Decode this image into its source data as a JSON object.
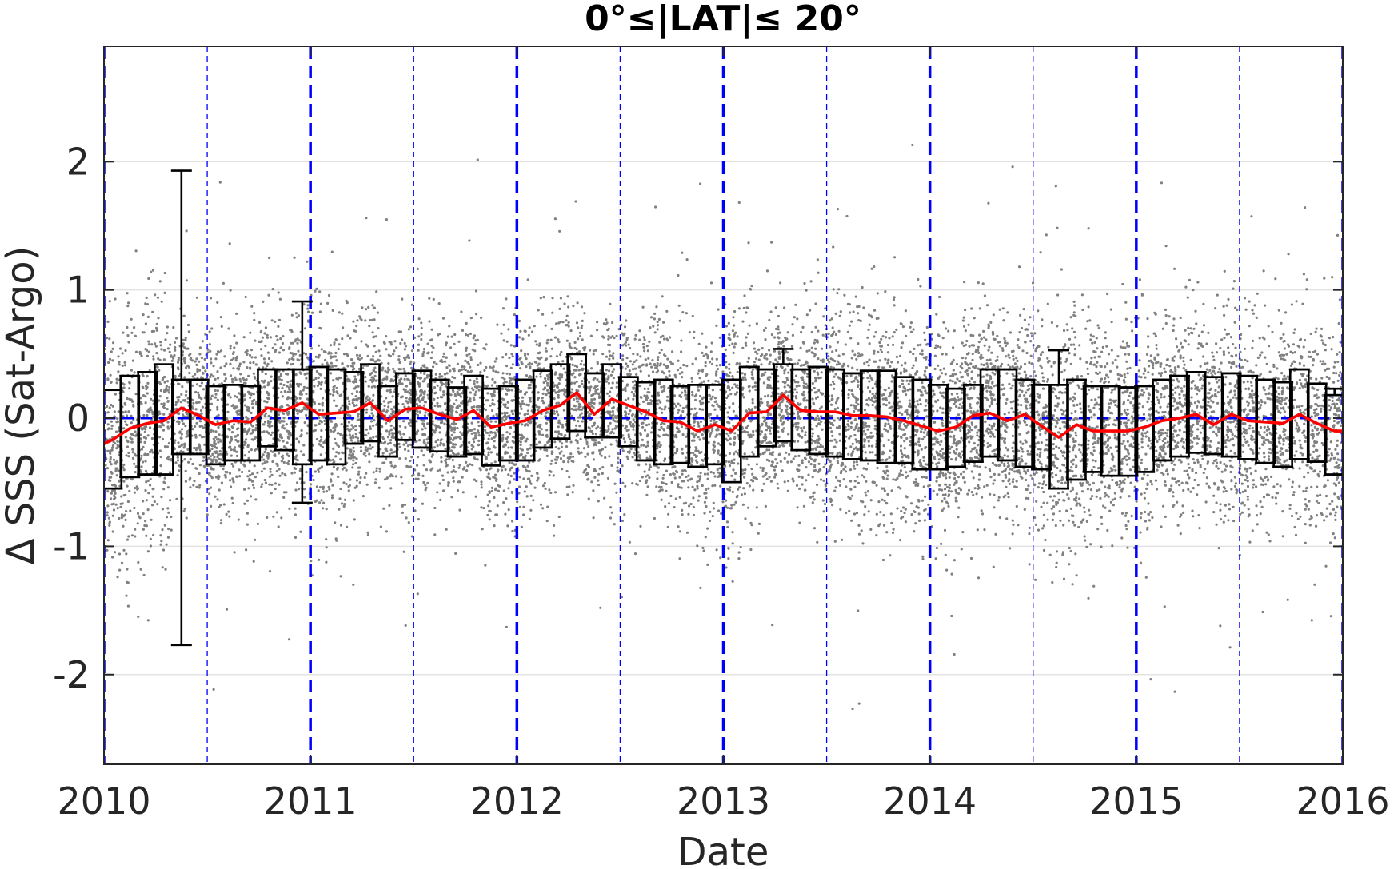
{
  "chart_data": {
    "type": "scatter",
    "title": "0°≤|LAT|≤ 20°",
    "xlabel": "Date",
    "ylabel": "Δ SSS (Sat-Argo)",
    "xlim": [
      2010,
      2016
    ],
    "ylim": [
      -2.7,
      2.9
    ],
    "x_ticks": [
      2010,
      2011,
      2012,
      2013,
      2014,
      2015,
      2016
    ],
    "x_tick_labels": [
      "2010",
      "2011",
      "2012",
      "2013",
      "2014",
      "2015",
      "2016"
    ],
    "y_ticks": [
      -2,
      -1,
      0,
      1,
      2
    ],
    "y_tick_labels": [
      "-2",
      "-1",
      "0",
      "1",
      "2"
    ],
    "grid": "horizontal",
    "legend": "none",
    "colors": {
      "scatter": "#808080",
      "mean_line": "#ff0000",
      "boxes": "#000000",
      "reference_lines": "#0000ff"
    },
    "scatter_points": "dense cloud of individual gray match-up points, mostly within -0.6 to 0.6 with outliers out to about ±2.5",
    "year_lines": [
      2010,
      2011,
      2012,
      2013,
      2014,
      2015,
      2016
    ],
    "half_year_lines": [
      2010.5,
      2011.5,
      2012.5,
      2013.5,
      2014.5,
      2015.5
    ],
    "zero_line": 0,
    "monthly_stats": [
      {
        "x": 2010.04,
        "center": -0.17,
        "q1": -0.55,
        "q3": 0.22,
        "w_low": -0.55,
        "w_high": 0.22
      },
      {
        "x": 2010.125,
        "center": -0.08,
        "q1": -0.46,
        "q3": 0.33,
        "w_low": -0.46,
        "w_high": 0.33
      },
      {
        "x": 2010.21,
        "center": -0.04,
        "q1": -0.44,
        "q3": 0.36,
        "w_low": -0.44,
        "w_high": 0.36
      },
      {
        "x": 2010.29,
        "center": -0.02,
        "q1": -0.44,
        "q3": 0.42,
        "w_low": -0.44,
        "w_high": 0.42
      },
      {
        "x": 2010.375,
        "center": 0.08,
        "q1": -0.28,
        "q3": 0.3,
        "w_low": -1.77,
        "w_high": 1.93
      },
      {
        "x": 2010.46,
        "center": 0.02,
        "q1": -0.28,
        "q3": 0.3,
        "w_low": -0.28,
        "w_high": 0.3
      },
      {
        "x": 2010.54,
        "center": -0.05,
        "q1": -0.36,
        "q3": 0.25,
        "w_low": -0.36,
        "w_high": 0.25
      },
      {
        "x": 2010.625,
        "center": -0.02,
        "q1": -0.33,
        "q3": 0.26,
        "w_low": -0.33,
        "w_high": 0.26
      },
      {
        "x": 2010.71,
        "center": -0.03,
        "q1": -0.33,
        "q3": 0.25,
        "w_low": -0.33,
        "w_high": 0.25
      },
      {
        "x": 2010.79,
        "center": 0.08,
        "q1": -0.22,
        "q3": 0.38,
        "w_low": -0.22,
        "w_high": 0.38
      },
      {
        "x": 2010.875,
        "center": 0.06,
        "q1": -0.25,
        "q3": 0.38,
        "w_low": -0.25,
        "w_high": 0.38
      },
      {
        "x": 2010.96,
        "center": 0.12,
        "q1": -0.36,
        "q3": 0.38,
        "w_low": -0.66,
        "w_high": 0.91
      },
      {
        "x": 2011.04,
        "center": 0.03,
        "q1": -0.33,
        "q3": 0.4,
        "w_low": -0.33,
        "w_high": 0.4
      },
      {
        "x": 2011.125,
        "center": 0.04,
        "q1": -0.36,
        "q3": 0.38,
        "w_low": -0.36,
        "w_high": 0.38
      },
      {
        "x": 2011.21,
        "center": 0.05,
        "q1": -0.2,
        "q3": 0.36,
        "w_low": -0.2,
        "w_high": 0.36
      },
      {
        "x": 2011.29,
        "center": 0.12,
        "q1": -0.18,
        "q3": 0.42,
        "w_low": -0.18,
        "w_high": 0.42
      },
      {
        "x": 2011.375,
        "center": -0.02,
        "q1": -0.3,
        "q3": 0.25,
        "w_low": -0.3,
        "w_high": 0.25
      },
      {
        "x": 2011.46,
        "center": 0.07,
        "q1": -0.17,
        "q3": 0.35,
        "w_low": -0.17,
        "w_high": 0.35
      },
      {
        "x": 2011.54,
        "center": 0.08,
        "q1": -0.23,
        "q3": 0.37,
        "w_low": -0.23,
        "w_high": 0.37
      },
      {
        "x": 2011.625,
        "center": 0.03,
        "q1": -0.26,
        "q3": 0.3,
        "w_low": -0.26,
        "w_high": 0.3
      },
      {
        "x": 2011.71,
        "center": -0.01,
        "q1": -0.3,
        "q3": 0.24,
        "w_low": -0.3,
        "w_high": 0.24
      },
      {
        "x": 2011.79,
        "center": 0.06,
        "q1": -0.28,
        "q3": 0.33,
        "w_low": -0.28,
        "w_high": 0.33
      },
      {
        "x": 2011.875,
        "center": -0.07,
        "q1": -0.37,
        "q3": 0.23,
        "w_low": -0.37,
        "w_high": 0.23
      },
      {
        "x": 2011.96,
        "center": -0.04,
        "q1": -0.33,
        "q3": 0.25,
        "w_low": -0.33,
        "w_high": 0.25
      },
      {
        "x": 2012.04,
        "center": -0.02,
        "q1": -0.33,
        "q3": 0.3,
        "w_low": -0.33,
        "w_high": 0.3
      },
      {
        "x": 2012.125,
        "center": 0.06,
        "q1": -0.23,
        "q3": 0.37,
        "w_low": -0.23,
        "w_high": 0.37
      },
      {
        "x": 2012.21,
        "center": 0.1,
        "q1": -0.16,
        "q3": 0.42,
        "w_low": -0.16,
        "w_high": 0.42
      },
      {
        "x": 2012.29,
        "center": 0.2,
        "q1": -0.1,
        "q3": 0.5,
        "w_low": -0.1,
        "w_high": 0.5
      },
      {
        "x": 2012.375,
        "center": 0.03,
        "q1": -0.15,
        "q3": 0.35,
        "w_low": -0.15,
        "w_high": 0.35
      },
      {
        "x": 2012.46,
        "center": 0.15,
        "q1": -0.15,
        "q3": 0.42,
        "w_low": -0.15,
        "w_high": 0.42
      },
      {
        "x": 2012.54,
        "center": 0.1,
        "q1": -0.22,
        "q3": 0.32,
        "w_low": -0.22,
        "w_high": 0.32
      },
      {
        "x": 2012.625,
        "center": 0.05,
        "q1": -0.33,
        "q3": 0.28,
        "w_low": -0.33,
        "w_high": 0.28
      },
      {
        "x": 2012.71,
        "center": -0.02,
        "q1": -0.36,
        "q3": 0.3,
        "w_low": -0.36,
        "w_high": 0.3
      },
      {
        "x": 2012.79,
        "center": -0.03,
        "q1": -0.35,
        "q3": 0.25,
        "w_low": -0.35,
        "w_high": 0.25
      },
      {
        "x": 2012.875,
        "center": -0.1,
        "q1": -0.38,
        "q3": 0.26,
        "w_low": -0.38,
        "w_high": 0.26
      },
      {
        "x": 2012.96,
        "center": -0.05,
        "q1": -0.36,
        "q3": 0.26,
        "w_low": -0.36,
        "w_high": 0.26
      },
      {
        "x": 2013.04,
        "center": -0.1,
        "q1": -0.5,
        "q3": 0.3,
        "w_low": -0.5,
        "w_high": 0.3
      },
      {
        "x": 2013.125,
        "center": 0.04,
        "q1": -0.3,
        "q3": 0.4,
        "w_low": -0.3,
        "w_high": 0.4
      },
      {
        "x": 2013.21,
        "center": 0.05,
        "q1": -0.22,
        "q3": 0.38,
        "w_low": -0.22,
        "w_high": 0.38
      },
      {
        "x": 2013.29,
        "center": 0.18,
        "q1": -0.18,
        "q3": 0.42,
        "w_low": -0.18,
        "w_high": 0.54
      },
      {
        "x": 2013.375,
        "center": 0.06,
        "q1": -0.25,
        "q3": 0.38,
        "w_low": -0.25,
        "w_high": 0.38
      },
      {
        "x": 2013.46,
        "center": 0.05,
        "q1": -0.28,
        "q3": 0.4,
        "w_low": -0.28,
        "w_high": 0.4
      },
      {
        "x": 2013.54,
        "center": 0.05,
        "q1": -0.3,
        "q3": 0.38,
        "w_low": -0.3,
        "w_high": 0.38
      },
      {
        "x": 2013.625,
        "center": 0.02,
        "q1": -0.32,
        "q3": 0.35,
        "w_low": -0.32,
        "w_high": 0.35
      },
      {
        "x": 2013.71,
        "center": 0.02,
        "q1": -0.33,
        "q3": 0.37,
        "w_low": -0.33,
        "w_high": 0.37
      },
      {
        "x": 2013.79,
        "center": 0.01,
        "q1": -0.35,
        "q3": 0.37,
        "w_low": -0.35,
        "w_high": 0.37
      },
      {
        "x": 2013.875,
        "center": -0.02,
        "q1": -0.35,
        "q3": 0.32,
        "w_low": -0.35,
        "w_high": 0.32
      },
      {
        "x": 2013.96,
        "center": -0.06,
        "q1": -0.4,
        "q3": 0.3,
        "w_low": -0.4,
        "w_high": 0.3
      },
      {
        "x": 2014.04,
        "center": -0.1,
        "q1": -0.4,
        "q3": 0.26,
        "w_low": -0.4,
        "w_high": 0.26
      },
      {
        "x": 2014.125,
        "center": -0.07,
        "q1": -0.38,
        "q3": 0.23,
        "w_low": -0.38,
        "w_high": 0.23
      },
      {
        "x": 2014.21,
        "center": 0.02,
        "q1": -0.34,
        "q3": 0.26,
        "w_low": -0.34,
        "w_high": 0.26
      },
      {
        "x": 2014.29,
        "center": 0.04,
        "q1": -0.3,
        "q3": 0.38,
        "w_low": -0.3,
        "w_high": 0.38
      },
      {
        "x": 2014.375,
        "center": -0.02,
        "q1": -0.33,
        "q3": 0.38,
        "w_low": -0.33,
        "w_high": 0.38
      },
      {
        "x": 2014.46,
        "center": 0.03,
        "q1": -0.38,
        "q3": 0.3,
        "w_low": -0.38,
        "w_high": 0.3
      },
      {
        "x": 2014.54,
        "center": -0.06,
        "q1": -0.4,
        "q3": 0.26,
        "w_low": -0.4,
        "w_high": 0.26
      },
      {
        "x": 2014.625,
        "center": -0.15,
        "q1": -0.55,
        "q3": 0.26,
        "w_low": -0.55,
        "w_high": 0.53
      },
      {
        "x": 2014.71,
        "center": -0.05,
        "q1": -0.48,
        "q3": 0.3,
        "w_low": -0.48,
        "w_high": 0.3
      },
      {
        "x": 2014.79,
        "center": -0.1,
        "q1": -0.42,
        "q3": 0.25,
        "w_low": -0.42,
        "w_high": 0.25
      },
      {
        "x": 2014.875,
        "center": -0.1,
        "q1": -0.45,
        "q3": 0.25,
        "w_low": -0.45,
        "w_high": 0.25
      },
      {
        "x": 2014.96,
        "center": -0.1,
        "q1": -0.45,
        "q3": 0.24,
        "w_low": -0.45,
        "w_high": 0.24
      },
      {
        "x": 2015.04,
        "center": -0.07,
        "q1": -0.42,
        "q3": 0.25,
        "w_low": -0.42,
        "w_high": 0.25
      },
      {
        "x": 2015.125,
        "center": -0.02,
        "q1": -0.33,
        "q3": 0.3,
        "w_low": -0.33,
        "w_high": 0.3
      },
      {
        "x": 2015.21,
        "center": 0.0,
        "q1": -0.3,
        "q3": 0.33,
        "w_low": -0.3,
        "w_high": 0.33
      },
      {
        "x": 2015.29,
        "center": 0.03,
        "q1": -0.27,
        "q3": 0.36,
        "w_low": -0.27,
        "w_high": 0.36
      },
      {
        "x": 2015.375,
        "center": -0.05,
        "q1": -0.28,
        "q3": 0.32,
        "w_low": -0.28,
        "w_high": 0.32
      },
      {
        "x": 2015.46,
        "center": 0.03,
        "q1": -0.3,
        "q3": 0.35,
        "w_low": -0.3,
        "w_high": 0.35
      },
      {
        "x": 2015.54,
        "center": -0.02,
        "q1": -0.32,
        "q3": 0.33,
        "w_low": -0.32,
        "w_high": 0.33
      },
      {
        "x": 2015.625,
        "center": -0.03,
        "q1": -0.35,
        "q3": 0.3,
        "w_low": -0.35,
        "w_high": 0.3
      },
      {
        "x": 2015.71,
        "center": -0.04,
        "q1": -0.38,
        "q3": 0.28,
        "w_low": -0.38,
        "w_high": 0.28
      },
      {
        "x": 2015.79,
        "center": 0.03,
        "q1": -0.32,
        "q3": 0.38,
        "w_low": -0.32,
        "w_high": 0.38
      },
      {
        "x": 2015.875,
        "center": -0.04,
        "q1": -0.34,
        "q3": 0.27,
        "w_low": -0.34,
        "w_high": 0.27
      },
      {
        "x": 2015.96,
        "center": -0.1,
        "q1": -0.44,
        "q3": 0.18,
        "w_low": -0.44,
        "w_high": 0.23
      }
    ]
  }
}
